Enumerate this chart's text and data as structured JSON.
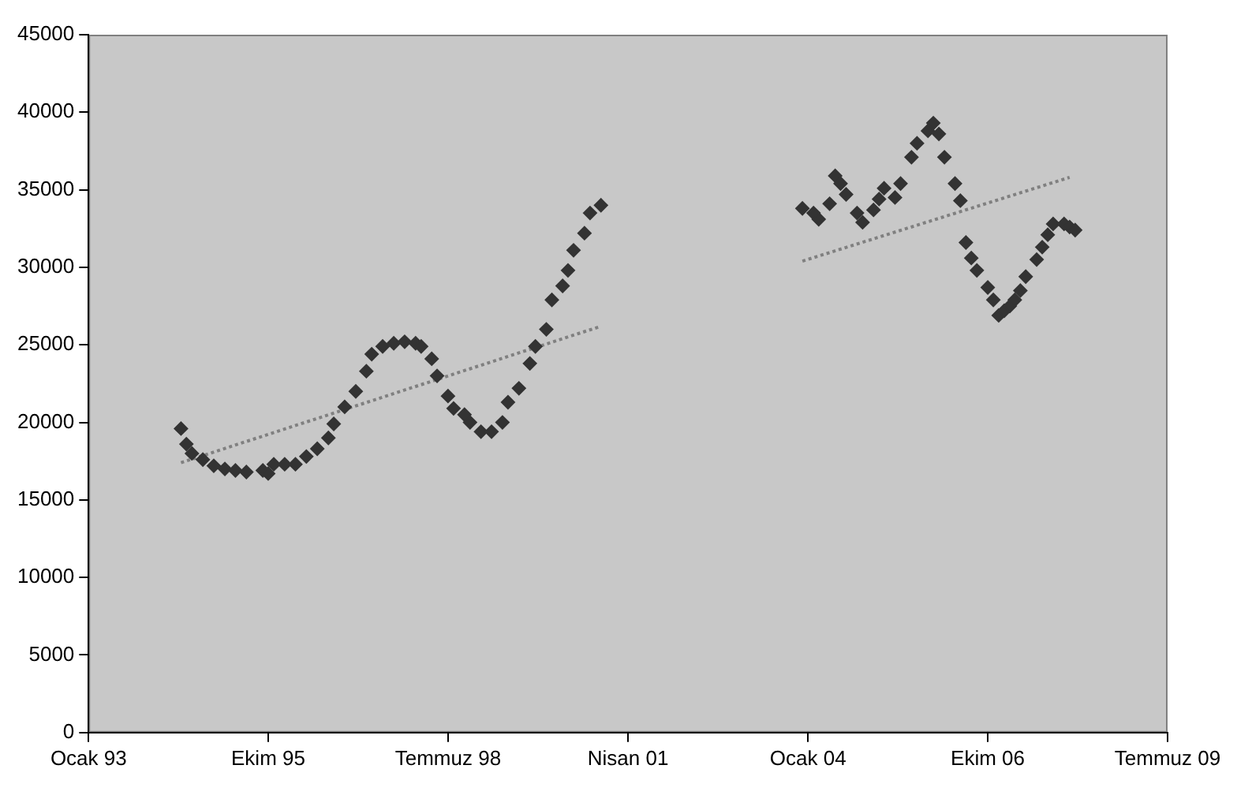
{
  "chart_data": {
    "type": "scatter",
    "marker": "diamond",
    "grid": false,
    "legend": false,
    "xlim": [
      "1993-01",
      "2009-07"
    ],
    "xticks": [
      {
        "value": "1993-01",
        "label": "Ocak 93"
      },
      {
        "value": "1995-10",
        "label": "Ekim 95"
      },
      {
        "value": "1998-07",
        "label": "Temmuz 98"
      },
      {
        "value": "2001-04",
        "label": "Nisan 01"
      },
      {
        "value": "2004-01",
        "label": "Ocak 04"
      },
      {
        "value": "2006-10",
        "label": "Ekim 06"
      },
      {
        "value": "2009-07",
        "label": "Temmuz 09"
      }
    ],
    "ylim": [
      0,
      45000
    ],
    "yticks": [
      0,
      5000,
      10000,
      15000,
      20000,
      25000,
      30000,
      35000,
      40000,
      45000
    ],
    "series": [
      {
        "type": "scatter",
        "color": "#333333",
        "x": [
          "1994-06",
          "1994-07",
          "1994-08",
          "1994-10",
          "1994-12",
          "1995-02",
          "1995-04",
          "1995-06",
          "1995-09",
          "1995-10",
          "1995-11",
          "1996-01",
          "1996-03",
          "1996-05",
          "1996-07",
          "1996-09",
          "1996-10",
          "1996-12",
          "1997-02",
          "1997-04",
          "1997-05",
          "1997-07",
          "1997-09",
          "1997-11",
          "1998-01",
          "1998-02",
          "1998-04",
          "1998-05",
          "1998-07",
          "1998-08",
          "1998-10",
          "1998-11",
          "1999-01",
          "1999-03",
          "1999-05",
          "1999-06",
          "1999-08",
          "1999-10",
          "1999-11",
          "2000-01",
          "2000-02",
          "2000-04",
          "2000-05",
          "2000-06",
          "2000-08",
          "2000-09",
          "2000-11"
        ],
        "values": [
          19600,
          18600,
          18000,
          17600,
          17200,
          17000,
          16900,
          16800,
          16900,
          16700,
          17300,
          17300,
          17300,
          17800,
          18300,
          19000,
          19900,
          21000,
          22000,
          23300,
          24400,
          24900,
          25100,
          25200,
          25100,
          24900,
          24100,
          23000,
          21700,
          20900,
          20500,
          20000,
          19400,
          19400,
          20000,
          21300,
          22200,
          23800,
          24900,
          26000,
          27900,
          28800,
          29800,
          31100,
          32200,
          33500,
          34000
        ]
      },
      {
        "type": "scatter",
        "color": "#333333",
        "x": [
          "2003-12",
          "2004-02",
          "2004-03",
          "2004-05",
          "2004-06",
          "2004-07",
          "2004-08",
          "2004-10",
          "2004-11",
          "2005-01",
          "2005-02",
          "2005-03",
          "2005-05",
          "2005-06",
          "2005-08",
          "2005-09",
          "2005-11",
          "2005-12",
          "2006-01",
          "2006-02",
          "2006-04",
          "2006-05",
          "2006-06",
          "2006-07",
          "2006-08",
          "2006-10",
          "2006-11",
          "2006-12",
          "2007-01",
          "2007-02",
          "2007-03",
          "2007-04",
          "2007-05",
          "2007-07",
          "2007-08",
          "2007-09",
          "2007-10",
          "2007-12",
          "2008-01",
          "2008-02"
        ],
        "values": [
          33800,
          33500,
          33100,
          34100,
          35900,
          35400,
          34700,
          33500,
          32900,
          33700,
          34400,
          35100,
          34500,
          35400,
          37100,
          38000,
          38800,
          39300,
          38600,
          37100,
          35400,
          34300,
          31600,
          30600,
          29800,
          28700,
          27900,
          26900,
          27200,
          27500,
          27900,
          28500,
          29400,
          30500,
          31300,
          32100,
          32800,
          32800,
          32600,
          32400
        ]
      },
      {
        "type": "line",
        "color": "#808080",
        "line_style": "dotted",
        "marker": "none",
        "x": [
          "1994-06",
          "2000-11"
        ],
        "values": [
          17400,
          26200
        ]
      },
      {
        "type": "line",
        "color": "#808080",
        "line_style": "dotted",
        "marker": "none",
        "x": [
          "2003-12",
          "2008-01"
        ],
        "values": [
          30400,
          35800
        ]
      }
    ]
  }
}
